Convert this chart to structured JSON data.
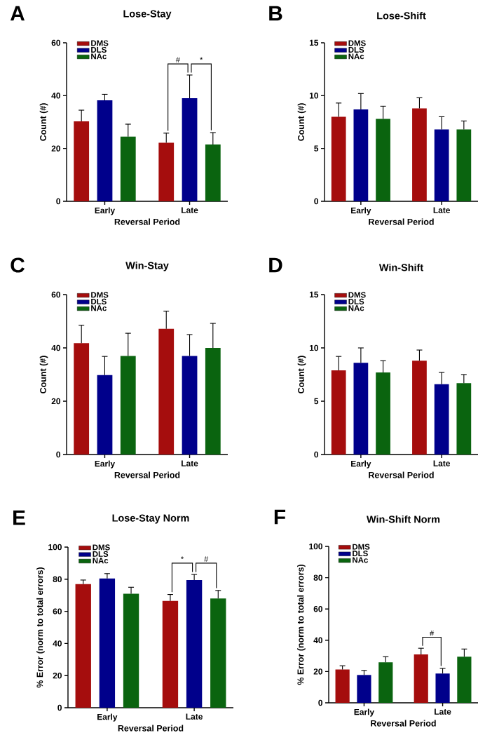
{
  "chart_data": [
    {
      "type": "bar",
      "title": "Lose-Stay",
      "xlabel": "Reversal Period",
      "ylabel": "Count (#)",
      "categories": [
        "Early",
        "Late"
      ],
      "ylim": [
        0,
        60
      ],
      "yticks": [
        0,
        20,
        40,
        60
      ],
      "legend": "top left",
      "annotations": [
        "A",
        "#",
        "*"
      ],
      "series": [
        {
          "name": "DMS",
          "color": "#a50d0d",
          "values": [
            30.3,
            22.2
          ],
          "errors": [
            [
              30.3,
              34.5
            ],
            [
              22.2,
              25.8
            ]
          ]
        },
        {
          "name": "DLS",
          "color": "#00008b",
          "values": [
            38.2,
            39
          ],
          "errors": [
            [
              38.2,
              40.5
            ],
            [
              39,
              47.8
            ]
          ]
        },
        {
          "name": "NAc",
          "color": "#0a640f",
          "values": [
            24.5,
            21.5
          ],
          "errors": [
            [
              24.5,
              29.2
            ],
            [
              21.5,
              26
            ]
          ]
        }
      ]
    },
    {
      "type": "bar",
      "title": "Lose-Shift",
      "xlabel": "Reversal Period",
      "ylabel": "Count (#)",
      "categories": [
        "Early",
        "Late"
      ],
      "ylim": [
        0,
        15
      ],
      "yticks": [
        0,
        5,
        10,
        15
      ],
      "legend": "top left",
      "annotations": [
        "B"
      ],
      "series": [
        {
          "name": "DMS",
          "color": "#a50d0d",
          "values": [
            8.0,
            8.8
          ],
          "errors": [
            [
              8.0,
              9.3
            ],
            [
              8.8,
              9.8
            ]
          ]
        },
        {
          "name": "DLS",
          "color": "#00008b",
          "values": [
            8.7,
            6.8
          ],
          "errors": [
            [
              8.7,
              10.2
            ],
            [
              6.8,
              8.0
            ]
          ]
        },
        {
          "name": "NAc",
          "color": "#0a640f",
          "values": [
            7.8,
            6.8
          ],
          "errors": [
            [
              7.8,
              9.0
            ],
            [
              6.8,
              7.6
            ]
          ]
        }
      ]
    },
    {
      "type": "bar",
      "title": "Win-Stay",
      "xlabel": "Reversal Period",
      "ylabel": "Count (#)",
      "categories": [
        "Early",
        "Late"
      ],
      "ylim": [
        0,
        60
      ],
      "yticks": [
        0,
        20,
        40,
        60
      ],
      "legend": "top left",
      "annotations": [
        "C"
      ],
      "series": [
        {
          "name": "DMS",
          "color": "#a50d0d",
          "values": [
            41.8,
            47.2
          ],
          "errors": [
            [
              41.8,
              48.5
            ],
            [
              47.2,
              53.8
            ]
          ]
        },
        {
          "name": "DLS",
          "color": "#00008b",
          "values": [
            29.8,
            37
          ],
          "errors": [
            [
              29.8,
              36.8
            ],
            [
              37,
              45
            ]
          ]
        },
        {
          "name": "NAc",
          "color": "#0a640f",
          "values": [
            37,
            40
          ],
          "errors": [
            [
              37,
              45.5
            ],
            [
              40,
              49.2
            ]
          ]
        }
      ]
    },
    {
      "type": "bar",
      "title": "Win-Shift",
      "xlabel": "Reversal Period",
      "ylabel": "Count (#)",
      "categories": [
        "Early",
        "Late"
      ],
      "ylim": [
        0,
        15
      ],
      "yticks": [
        0,
        5,
        10,
        15
      ],
      "legend": "top left",
      "annotations": [
        "D"
      ],
      "series": [
        {
          "name": "DMS",
          "color": "#a50d0d",
          "values": [
            7.9,
            8.8
          ],
          "errors": [
            [
              7.9,
              9.2
            ],
            [
              8.8,
              9.8
            ]
          ]
        },
        {
          "name": "DLS",
          "color": "#00008b",
          "values": [
            8.6,
            6.6
          ],
          "errors": [
            [
              8.6,
              10.0
            ],
            [
              6.6,
              7.7
            ]
          ]
        },
        {
          "name": "NAc",
          "color": "#0a640f",
          "values": [
            7.7,
            6.7
          ],
          "errors": [
            [
              7.7,
              8.8
            ],
            [
              6.7,
              7.5
            ]
          ]
        }
      ]
    },
    {
      "type": "bar",
      "title": "Lose-Stay Norm",
      "xlabel": "Reversal Period",
      "ylabel": "% Error (norm to total errors)",
      "categories": [
        "Early",
        "Late"
      ],
      "ylim": [
        0,
        100
      ],
      "yticks": [
        0,
        20,
        40,
        60,
        80,
        100
      ],
      "legend": "top left",
      "annotations": [
        "E",
        "*",
        "#"
      ],
      "series": [
        {
          "name": "DMS",
          "color": "#a50d0d",
          "values": [
            77,
            66.5
          ],
          "errors": [
            [
              77,
              79.5
            ],
            [
              66.5,
              70.5
            ]
          ]
        },
        {
          "name": "DLS",
          "color": "#00008b",
          "values": [
            80.5,
            79.5
          ],
          "errors": [
            [
              80.5,
              83.5
            ],
            [
              79.5,
              83
            ]
          ]
        },
        {
          "name": "NAc",
          "color": "#0a640f",
          "values": [
            71,
            68
          ],
          "errors": [
            [
              71,
              75
            ],
            [
              68,
              73
            ]
          ]
        }
      ]
    },
    {
      "type": "bar",
      "title": "Win-Shift Norm",
      "xlabel": "Reversal Period",
      "ylabel": "% Error (norm to total errors)",
      "categories": [
        "Early",
        "Late"
      ],
      "ylim": [
        0,
        100
      ],
      "yticks": [
        0,
        20,
        40,
        60,
        80,
        100
      ],
      "legend": "top left",
      "annotations": [
        "F",
        "#"
      ],
      "series": [
        {
          "name": "DMS",
          "color": "#a50d0d",
          "values": [
            21.3,
            31
          ],
          "errors": [
            [
              21.3,
              23.7
            ],
            [
              31,
              34.9
            ]
          ]
        },
        {
          "name": "DLS",
          "color": "#00008b",
          "values": [
            17.8,
            18.7
          ],
          "errors": [
            [
              17.8,
              20.7
            ],
            [
              18.7,
              22
            ]
          ]
        },
        {
          "name": "NAc",
          "color": "#0a640f",
          "values": [
            25.9,
            29.5
          ],
          "errors": [
            [
              25.9,
              29.5
            ],
            [
              29.5,
              34.4
            ]
          ]
        }
      ]
    }
  ]
}
